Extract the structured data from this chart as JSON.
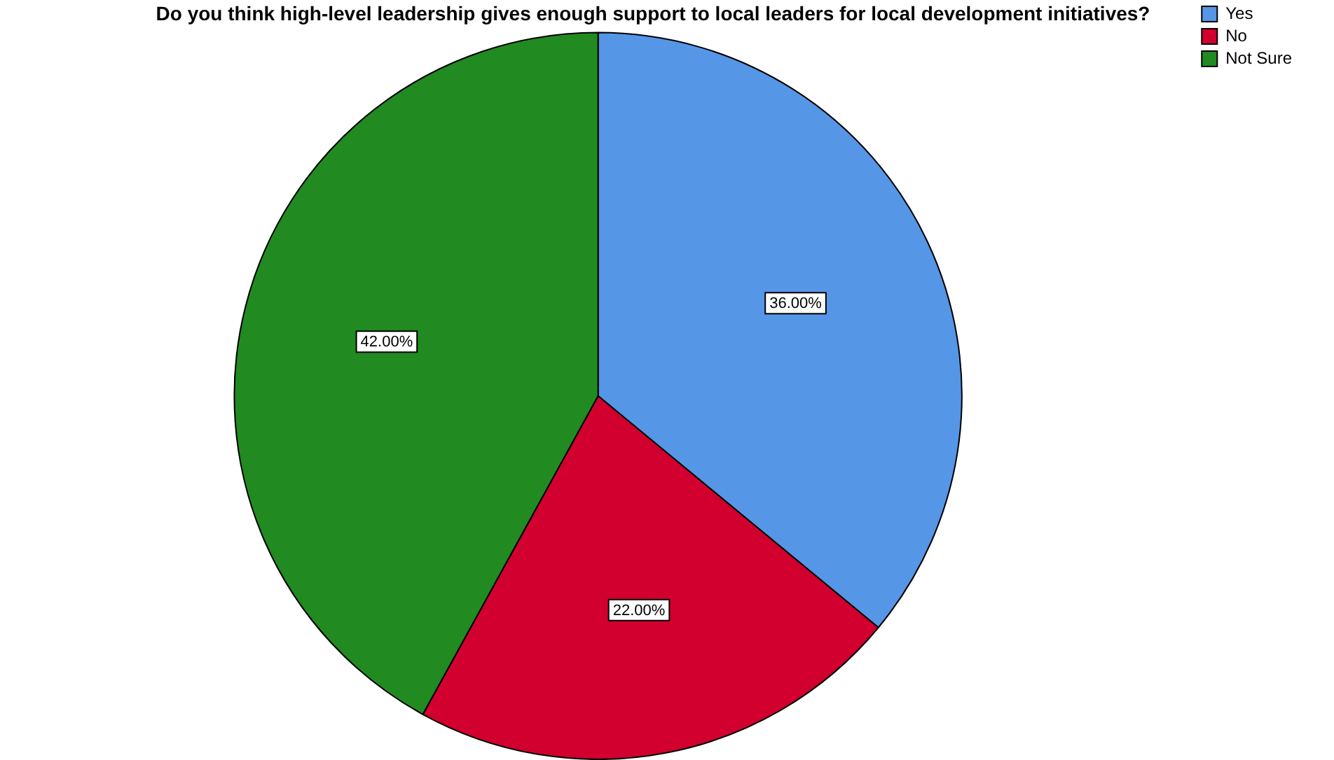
{
  "chart_data": {
    "type": "pie",
    "title": "Do you think high-level leadership gives enough support to local leaders for local development initiatives?",
    "categories": [
      "Yes",
      "No",
      "Not Sure"
    ],
    "values": [
      36,
      22,
      42
    ],
    "colors": [
      "#5596e6",
      "#d2002e",
      "#218a21"
    ],
    "value_labels": [
      "36.00%",
      "22.00%",
      "42.00%"
    ],
    "legend": "top right"
  }
}
